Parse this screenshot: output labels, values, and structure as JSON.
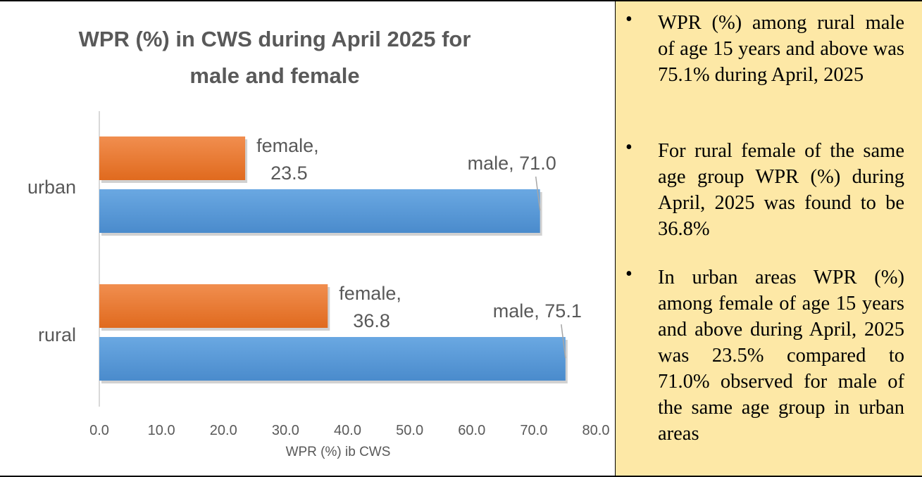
{
  "chart_data": {
    "type": "bar",
    "orientation": "horizontal",
    "title": "WPR  (%) in CWS during April 2025 for\nmale and female",
    "xlabel": "WPR (%) ib CWS",
    "ylabel": "",
    "categories": [
      "urban",
      "rural"
    ],
    "series": [
      {
        "name": "female",
        "values": [
          23.5,
          36.8
        ],
        "data_labels": [
          "female,\n23.5",
          "female,\n36.8"
        ]
      },
      {
        "name": "male",
        "values": [
          71.0,
          75.1
        ],
        "data_labels": [
          "male, 71.0",
          "male, 75.1"
        ]
      }
    ],
    "xlim": [
      0,
      80
    ],
    "x_ticks": [
      "0.0",
      "10.0",
      "20.0",
      "30.0",
      "40.0",
      "50.0",
      "60.0",
      "70.0",
      "80.0"
    ],
    "grid": false,
    "legend": "none",
    "colors": {
      "female": "#ed7d31",
      "male": "#5b9bd5",
      "text": "#595959",
      "axis": "#d9d9d9"
    }
  },
  "notes": {
    "background": "#fde8a6",
    "bullet": "•",
    "items": [
      "WPR (%) among rural male of age 15 years and above was 75.1% during April, 2025",
      "For rural female of the same age group WPR (%) during April, 2025 was found to be 36.8%",
      "In urban areas WPR (%) among female of age 15 years and above during April, 2025 was 23.5% compared to 71.0% observed for male of the same age group in urban areas"
    ]
  }
}
